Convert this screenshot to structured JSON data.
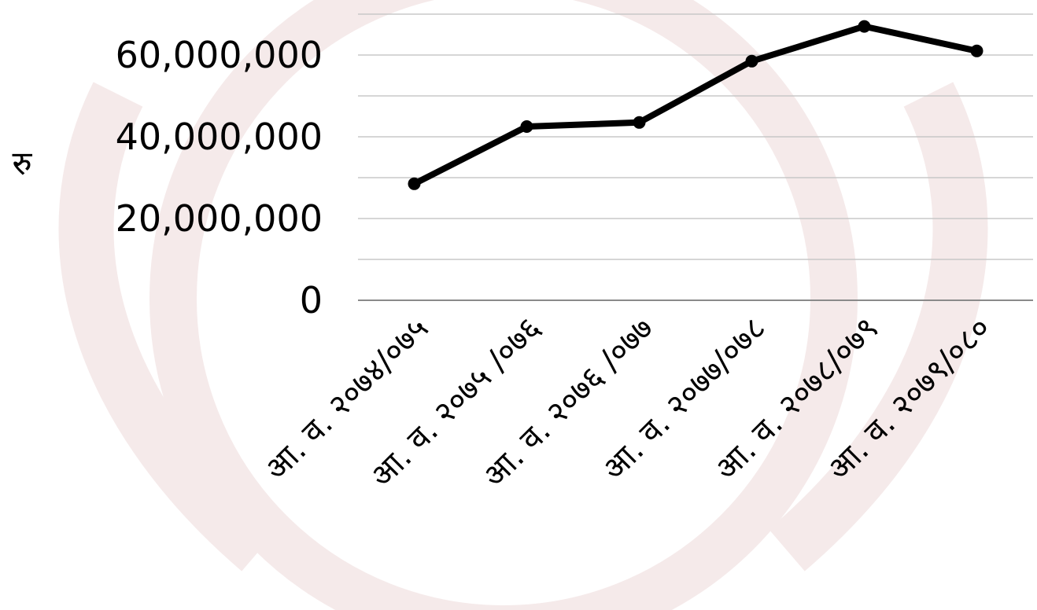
{
  "chart_data": {
    "type": "line",
    "title": "",
    "ylabel": "रु",
    "xlabel": "",
    "categories": [
      "आ. व. २०७४/०७५",
      "आ. व. २०७५ /०७६",
      "आ. व. २०७६ /०७७",
      "आ. व. २०७७/०७८",
      "आ. व. २०७८/०७९",
      "आ. व. २०७९/०८०"
    ],
    "series": [
      {
        "values": [
          28500000,
          42500000,
          43500000,
          58500000,
          67000000,
          61000000
        ]
      }
    ],
    "ylim": [
      0,
      70000000
    ],
    "yticks": [
      0,
      20000000,
      40000000,
      60000000
    ],
    "ytick_labels": [
      "0",
      "20,000,000",
      "40,000,000",
      "60,000,000"
    ],
    "grid": true,
    "line_color": "#000000",
    "gridline_color": "#c8c8c8",
    "watermark_color": "#f3e6e6"
  }
}
